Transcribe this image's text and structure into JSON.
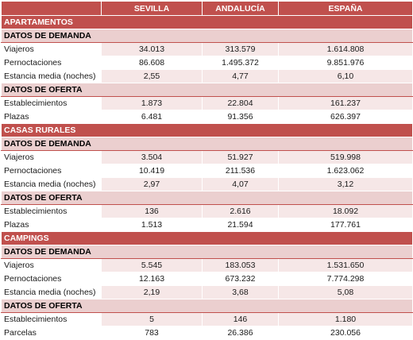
{
  "columns": [
    "SEVILLA",
    "ANDALUCÍA",
    "ESPAÑA"
  ],
  "sections": [
    {
      "title": "APARTAMENTOS",
      "groups": [
        {
          "title": "DATOS DE DEMANDA",
          "rows": [
            {
              "label": "Viajeros",
              "values": [
                "34.013",
                "313.579",
                "1.614.808"
              ]
            },
            {
              "label": "Pernoctaciones",
              "values": [
                "86.608",
                "1.495.372",
                "9.851.976"
              ]
            },
            {
              "label": "Estancia media (noches)",
              "values": [
                "2,55",
                "4,77",
                "6,10"
              ]
            }
          ]
        },
        {
          "title": "DATOS DE OFERTA",
          "rows": [
            {
              "label": "Establecimientos",
              "values": [
                "1.873",
                "22.804",
                "161.237"
              ]
            },
            {
              "label": "Plazas",
              "values": [
                "6.481",
                "91.356",
                "626.397"
              ]
            }
          ]
        }
      ]
    },
    {
      "title": "CASAS RURALES",
      "groups": [
        {
          "title": "DATOS DE DEMANDA",
          "rows": [
            {
              "label": "Viajeros",
              "values": [
                "3.504",
                "51.927",
                "519.998"
              ]
            },
            {
              "label": "Pernoctaciones",
              "values": [
                "10.419",
                "211.536",
                "1.623.062"
              ]
            },
            {
              "label": "Estancia media (noches)",
              "values": [
                "2,97",
                "4,07",
                "3,12"
              ]
            }
          ]
        },
        {
          "title": "DATOS DE OFERTA",
          "rows": [
            {
              "label": "Establecimientos",
              "values": [
                "136",
                "2.616",
                "18.092"
              ]
            },
            {
              "label": "Plazas",
              "values": [
                "1.513",
                "21.594",
                "177.761"
              ]
            }
          ]
        }
      ]
    },
    {
      "title": "CAMPINGS",
      "groups": [
        {
          "title": "DATOS DE DEMANDA",
          "rows": [
            {
              "label": "Viajeros",
              "values": [
                "5.545",
                "183.053",
                "1.531.650"
              ]
            },
            {
              "label": "Pernoctaciones",
              "values": [
                "12.163",
                "673.232",
                "7.774.298"
              ]
            },
            {
              "label": "Estancia media (noches)",
              "values": [
                "2,19",
                "3,68",
                "5,08"
              ]
            }
          ]
        },
        {
          "title": "DATOS DE OFERTA",
          "rows": [
            {
              "label": "Establecimientos",
              "values": [
                "5",
                "146",
                "1.180"
              ]
            },
            {
              "label": "Parcelas",
              "values": [
                "783",
                "26.386",
                "230.056"
              ]
            }
          ]
        }
      ]
    }
  ]
}
